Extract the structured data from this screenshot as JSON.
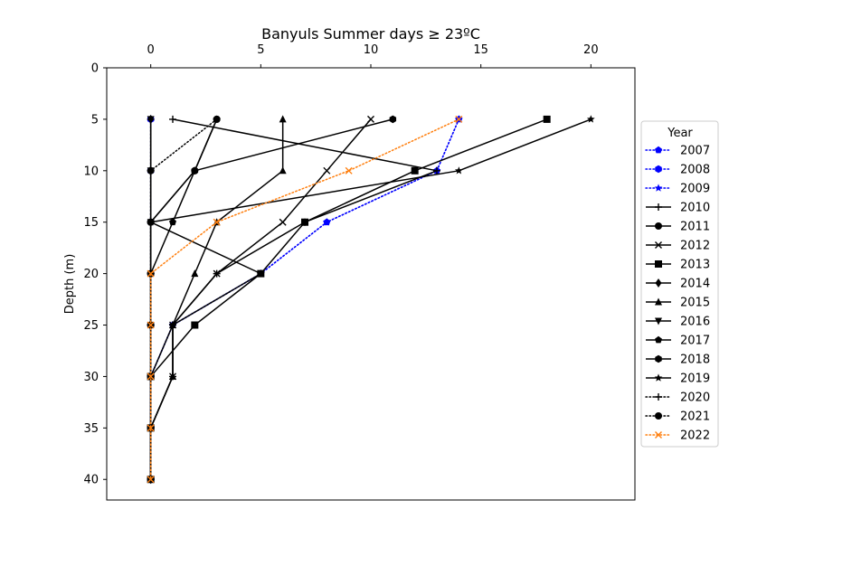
{
  "chart_data": {
    "type": "line",
    "title": "Banyuls Summer days ≥ 23ºC",
    "xlabel": "",
    "ylabel": "Depth (m)",
    "x_axis_position": "top",
    "y_inverted": true,
    "xlim": [
      -2,
      22
    ],
    "ylim": [
      42,
      0
    ],
    "x_ticks": [
      0,
      5,
      10,
      15,
      20
    ],
    "y_ticks": [
      0,
      5,
      10,
      15,
      20,
      25,
      30,
      35,
      40
    ],
    "grid": false,
    "legend": {
      "title": "Year",
      "placement": "right"
    },
    "depths": [
      5,
      10,
      15,
      20,
      25,
      30,
      35,
      40
    ],
    "series": [
      {
        "name": "2007",
        "color": "#0000ff",
        "dash": "dotted",
        "marker": "pentagon",
        "values": [
          14,
          13,
          8,
          5,
          1,
          0,
          0,
          0
        ]
      },
      {
        "name": "2008",
        "color": "#0000ff",
        "dash": "dotted",
        "marker": "hexagon",
        "values": [
          0,
          0,
          0,
          0,
          0,
          0,
          0,
          0
        ]
      },
      {
        "name": "2009",
        "color": "#0000ff",
        "dash": "dotted",
        "marker": "star",
        "values": [
          14,
          13,
          8,
          5,
          1,
          0,
          0,
          0
        ]
      },
      {
        "name": "2010",
        "color": "#000000",
        "dash": "solid",
        "marker": "plus",
        "values": [
          1,
          13,
          7,
          3,
          1,
          1,
          0,
          0
        ]
      },
      {
        "name": "2011",
        "color": "#000000",
        "dash": "solid",
        "marker": "circle",
        "values": [
          3,
          2,
          0,
          0,
          0,
          0,
          0,
          0
        ]
      },
      {
        "name": "2012",
        "color": "#000000",
        "dash": "solid",
        "marker": "x",
        "values": [
          10,
          8,
          6,
          3,
          1,
          1,
          0,
          0
        ]
      },
      {
        "name": "2013",
        "color": "#000000",
        "dash": "solid",
        "marker": "square",
        "values": [
          18,
          12,
          7,
          5,
          2,
          0,
          0,
          0
        ]
      },
      {
        "name": "2014",
        "color": "#000000",
        "dash": "solid",
        "marker": "diamond",
        "values": [
          0,
          0,
          0,
          0,
          0,
          0,
          0,
          0
        ]
      },
      {
        "name": "2015",
        "color": "#000000",
        "dash": "solid",
        "marker": "triangle-up",
        "values": [
          6,
          6,
          3,
          2,
          1,
          1,
          0,
          0
        ]
      },
      {
        "name": "2016",
        "color": "#000000",
        "dash": "solid",
        "marker": "triangle-down",
        "values": [
          0,
          0,
          0,
          0,
          0,
          0,
          0,
          0
        ]
      },
      {
        "name": "2017",
        "color": "#000000",
        "dash": "solid",
        "marker": "pentagon",
        "values": [
          3,
          2,
          1,
          0,
          0,
          0,
          0,
          0
        ]
      },
      {
        "name": "2018",
        "color": "#000000",
        "dash": "solid",
        "marker": "hexagon",
        "values": [
          11,
          2,
          0,
          0,
          0,
          0,
          0,
          0
        ]
      },
      {
        "name": "2019",
        "color": "#000000",
        "dash": "solid",
        "marker": "star",
        "values": [
          20,
          14,
          0,
          5,
          1,
          0,
          0,
          0
        ]
      },
      {
        "name": "2020",
        "color": "#000000",
        "dash": "dotted",
        "marker": "plus",
        "values": [
          0,
          0,
          0,
          0,
          0,
          0,
          0,
          0
        ]
      },
      {
        "name": "2021",
        "color": "#000000",
        "dash": "dotted",
        "marker": "circle",
        "values": [
          3,
          0,
          0,
          0,
          0,
          0,
          0,
          0
        ]
      },
      {
        "name": "2022",
        "color": "#ff7f0e",
        "dash": "dotted",
        "marker": "x",
        "values": [
          14,
          9,
          3,
          0,
          0,
          0,
          0,
          0
        ]
      }
    ]
  }
}
